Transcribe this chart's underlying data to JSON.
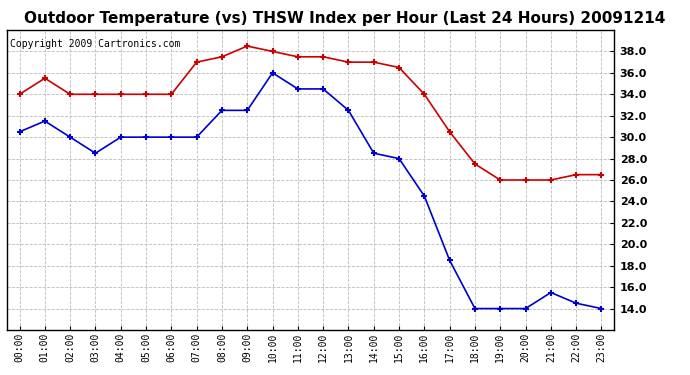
{
  "title": "Outdoor Temperature (vs) THSW Index per Hour (Last 24 Hours) 20091214",
  "copyright": "Copyright 2009 Cartronics.com",
  "hours": [
    "00:00",
    "01:00",
    "02:00",
    "03:00",
    "04:00",
    "05:00",
    "06:00",
    "07:00",
    "08:00",
    "09:00",
    "10:00",
    "11:00",
    "12:00",
    "13:00",
    "14:00",
    "15:00",
    "16:00",
    "17:00",
    "18:00",
    "19:00",
    "20:00",
    "21:00",
    "22:00",
    "23:00"
  ],
  "temp": [
    30.5,
    31.5,
    30.0,
    28.5,
    30.0,
    30.0,
    30.0,
    30.0,
    32.5,
    32.5,
    36.0,
    34.5,
    34.5,
    32.5,
    28.5,
    28.0,
    24.5,
    18.5,
    14.0,
    14.0,
    14.0,
    15.5,
    14.5,
    14.0
  ],
  "thsw": [
    34.0,
    35.5,
    34.0,
    34.0,
    34.0,
    34.0,
    34.0,
    37.0,
    37.5,
    38.5,
    38.0,
    37.5,
    37.5,
    37.0,
    37.0,
    36.5,
    34.0,
    30.5,
    27.5,
    26.0,
    26.0,
    26.0,
    26.5,
    26.5
  ],
  "temp_color": "#0000cc",
  "thsw_color": "#cc0000",
  "bg_color": "#ffffff",
  "grid_color": "#bbbbbb",
  "ylim_min": 12.0,
  "ylim_max": 40.0,
  "yticks": [
    14.0,
    16.0,
    18.0,
    20.0,
    22.0,
    24.0,
    26.0,
    28.0,
    30.0,
    32.0,
    34.0,
    36.0,
    38.0
  ],
  "title_fontsize": 11,
  "copyright_fontsize": 7
}
